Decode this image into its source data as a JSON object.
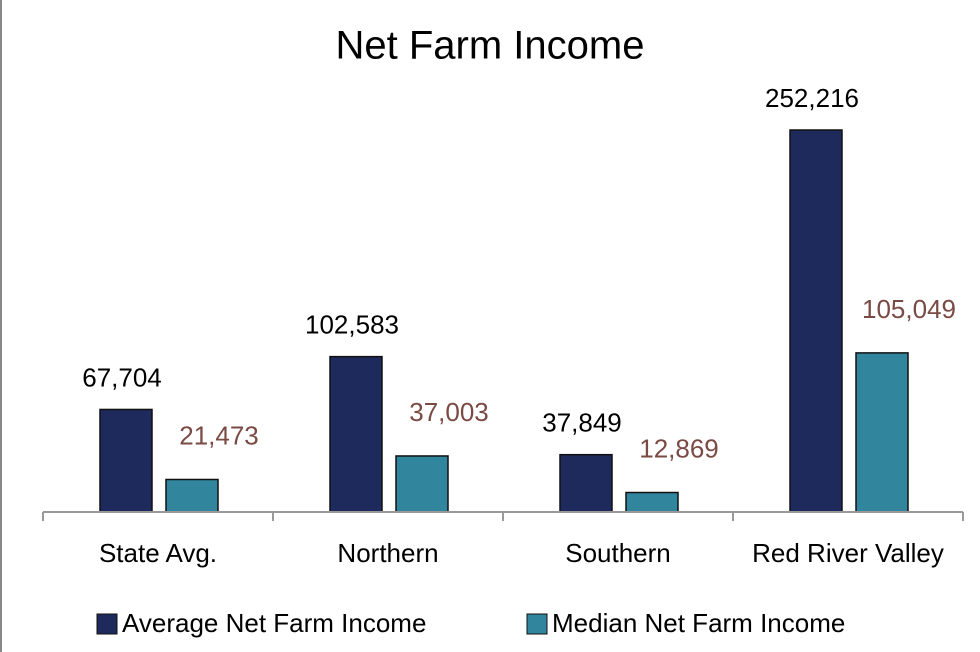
{
  "chart_data": {
    "type": "bar",
    "title": "Net Farm Income",
    "categories": [
      "State Avg.",
      "Northern",
      "Southern",
      "Red River Valley"
    ],
    "series": [
      {
        "name": "Average Net Farm Income",
        "color": "#1f2a5c",
        "label_color": "#000000",
        "values": [
          67704,
          102583,
          37849,
          252216
        ],
        "value_labels": [
          "67,704",
          "102,583",
          "37,849",
          "252,216"
        ]
      },
      {
        "name": "Median Net Farm Income",
        "color": "#31859c",
        "label_color": "#7a4a44",
        "values": [
          21473,
          37003,
          12869,
          105049
        ],
        "value_labels": [
          "21,473",
          "37,003",
          "12,869",
          "105,049"
        ]
      }
    ]
  }
}
